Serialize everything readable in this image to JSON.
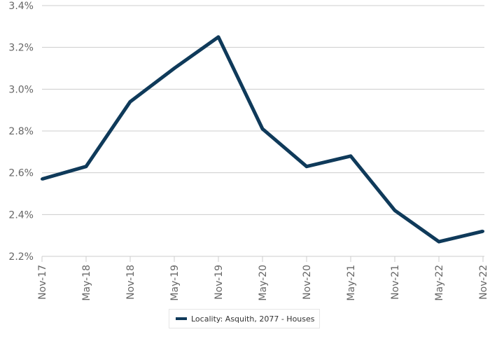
{
  "chart_data": {
    "type": "line",
    "title": "",
    "xlabel": "",
    "ylabel": "",
    "categories": [
      "Nov-17",
      "May-18",
      "Nov-18",
      "May-19",
      "Nov-19",
      "May-20",
      "Nov-20",
      "May-21",
      "Nov-21",
      "May-22",
      "Nov-22"
    ],
    "series": [
      {
        "name": "Locality: Asquith, 2077 - Houses",
        "color": "#0f3a5a",
        "values": [
          2.57,
          2.63,
          2.94,
          3.1,
          3.25,
          2.81,
          2.63,
          2.68,
          2.42,
          2.27,
          2.32
        ]
      }
    ],
    "ylim": [
      2.2,
      3.4
    ],
    "yticks": [
      2.2,
      2.4,
      2.6,
      2.8,
      3.0,
      3.2,
      3.4
    ],
    "ytick_labels": [
      "2.2%",
      "2.4%",
      "2.6%",
      "2.8%",
      "3.0%",
      "3.2%",
      "3.4%"
    ],
    "grid": true,
    "legend_position": "bottom",
    "colors": {
      "line": "#0f3a5a",
      "grid": "#cccccc",
      "axis_text": "#666666"
    }
  }
}
